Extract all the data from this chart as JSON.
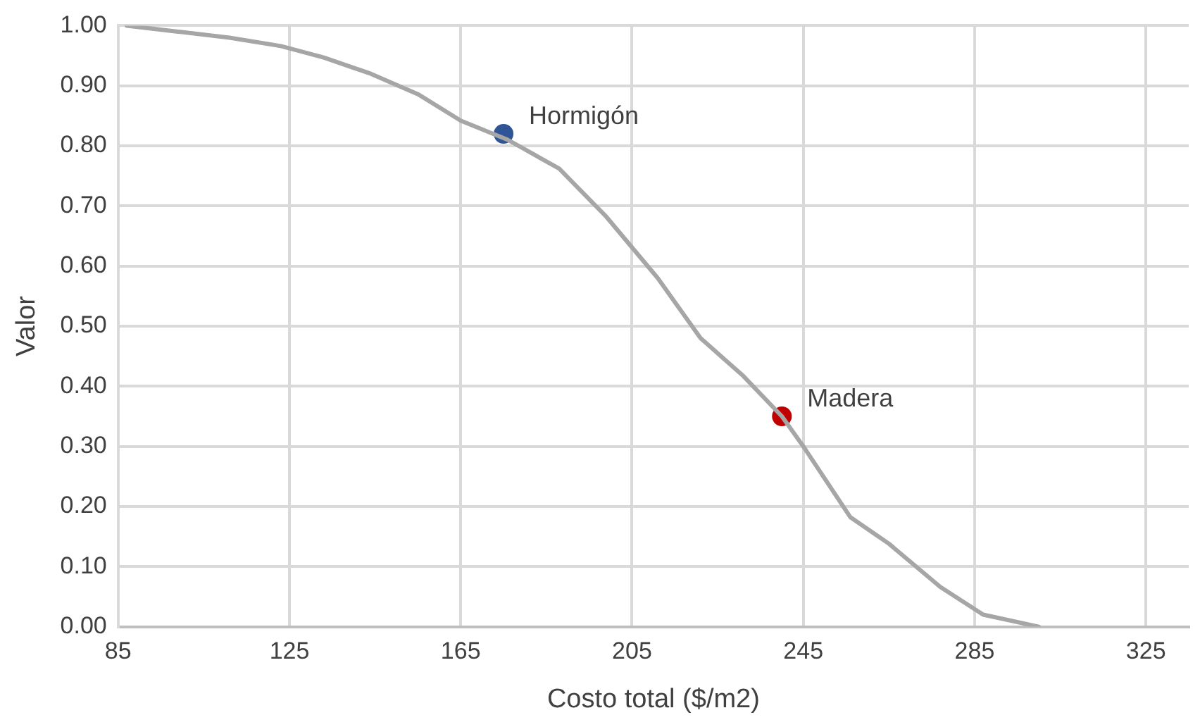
{
  "chart_data": {
    "type": "line",
    "xlabel": "Costo total ($/m2)",
    "ylabel": "Valor",
    "xlim": [
      85,
      335
    ],
    "xticks": [
      85,
      125,
      165,
      205,
      245,
      285,
      325
    ],
    "ylim": [
      0,
      1
    ],
    "yticks": [
      {
        "value": 0,
        "label": "0.00"
      },
      {
        "value": 0.1,
        "label": "0.10"
      },
      {
        "value": 0.2,
        "label": "0.20"
      },
      {
        "value": 0.3,
        "label": "0.30"
      },
      {
        "value": 0.4,
        "label": "0.40"
      },
      {
        "value": 0.5,
        "label": "0.50"
      },
      {
        "value": 0.6,
        "label": "0.60"
      },
      {
        "value": 0.7,
        "label": "0.70"
      },
      {
        "value": 0.8,
        "label": "0.80"
      },
      {
        "value": 0.9,
        "label": "0.90"
      },
      {
        "value": 1,
        "label": "1.00"
      }
    ],
    "grid": true,
    "legend": false,
    "series": [
      {
        "type": "line",
        "color": "#a6a6a6",
        "marker": "none",
        "x": [
          87,
          99,
          111,
          123,
          133,
          144,
          155,
          165,
          176,
          188,
          199,
          211,
          221,
          231,
          240,
          245,
          256,
          265,
          277,
          287,
          300
        ],
        "values": [
          1.0,
          0.99,
          0.98,
          0.966,
          0.947,
          0.92,
          0.886,
          0.842,
          0.81,
          0.762,
          0.682,
          0.58,
          0.48,
          0.417,
          0.35,
          0.3,
          0.182,
          0.138,
          0.066,
          0.02,
          0.0
        ]
      },
      {
        "type": "scatter",
        "name": "Hormigón",
        "color": "#2f5597",
        "marker": "circle",
        "x": [
          175
        ],
        "values": [
          0.82
        ]
      },
      {
        "type": "scatter",
        "name": "Madera",
        "color": "#c00000",
        "marker": "circle",
        "x": [
          240
        ],
        "values": [
          0.35
        ]
      }
    ]
  }
}
